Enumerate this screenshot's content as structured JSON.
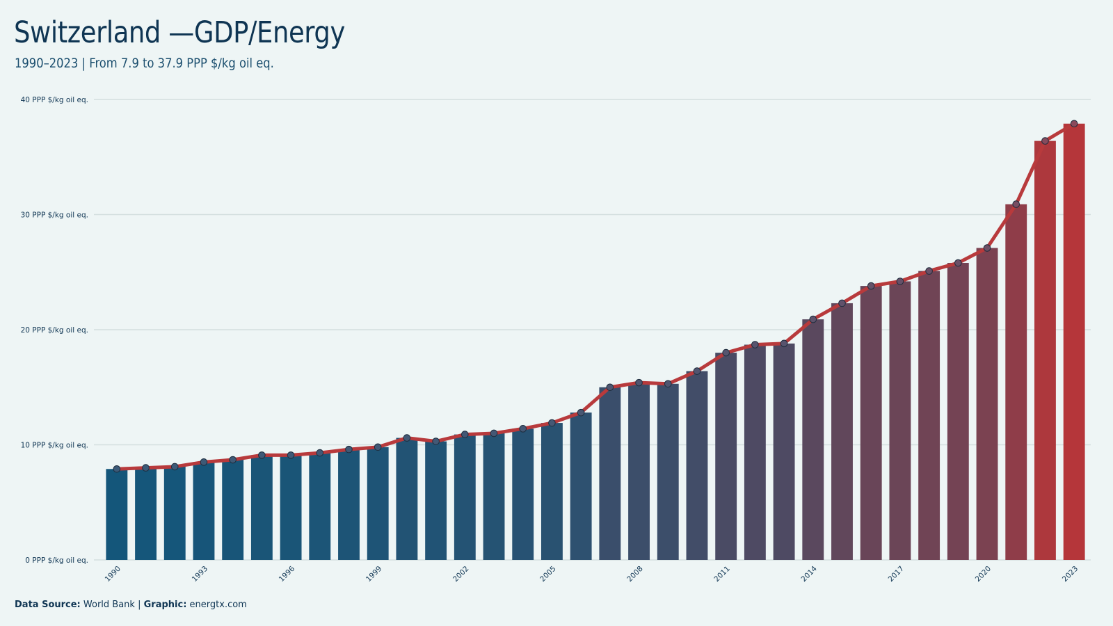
{
  "header": {
    "title": "Switzerland —GDP/Energy",
    "subtitle": "1990–2023 | From 7.9 to 37.9 PPP $/kg oil eq."
  },
  "footer": {
    "source_label": "Data Source:",
    "source_value": "World Bank",
    "separator": "|",
    "graphic_label": "Graphic:",
    "graphic_value": "energtx.com"
  },
  "colors": {
    "start": "#14567a",
    "end": "#b5363a",
    "line": "#b83a3c",
    "grid": "#d3dede",
    "text": "#0f3553"
  },
  "chart_data": {
    "type": "bar",
    "y_unit": "PPP $/kg oil eq.",
    "ylim": [
      0,
      40
    ],
    "y_ticks": [
      0,
      10,
      20,
      30,
      40
    ],
    "y_tick_labels": [
      "0 PPP $/kg oil eq.",
      "10 PPP $/kg oil eq.",
      "20 PPP $/kg oil eq.",
      "30 PPP $/kg oil eq.",
      "40 PPP $/kg oil eq."
    ],
    "x_tick_labels": [
      "1990",
      "1993",
      "1996",
      "1999",
      "2002",
      "2005",
      "2008",
      "2011",
      "2014",
      "2017",
      "2020",
      "2023"
    ],
    "grid": true,
    "categories": [
      1990,
      1991,
      1992,
      1993,
      1994,
      1995,
      1996,
      1997,
      1998,
      1999,
      2000,
      2001,
      2002,
      2003,
      2004,
      2005,
      2006,
      2007,
      2008,
      2009,
      2010,
      2011,
      2012,
      2013,
      2014,
      2015,
      2016,
      2017,
      2018,
      2019,
      2020,
      2021,
      2022,
      2023
    ],
    "values": [
      7.9,
      8.0,
      8.1,
      8.5,
      8.7,
      9.1,
      9.1,
      9.3,
      9.6,
      9.8,
      10.6,
      10.3,
      10.9,
      11.0,
      11.4,
      11.9,
      12.8,
      15.0,
      15.4,
      15.3,
      16.4,
      18.0,
      18.7,
      18.8,
      20.9,
      22.3,
      23.8,
      24.2,
      25.1,
      25.8,
      27.1,
      30.9,
      36.4,
      37.9
    ],
    "overlay": "line with markers"
  }
}
